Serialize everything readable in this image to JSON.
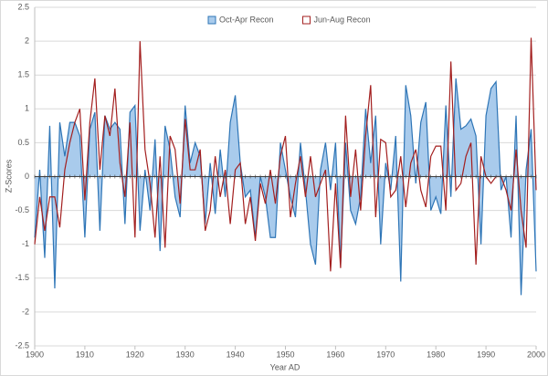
{
  "chart_data": {
    "type": "area-line",
    "xlabel": "Year AD",
    "ylabel": "Z-Scores",
    "x": [
      1900,
      1901,
      1902,
      1903,
      1904,
      1905,
      1906,
      1907,
      1908,
      1909,
      1910,
      1911,
      1912,
      1913,
      1914,
      1915,
      1916,
      1917,
      1918,
      1919,
      1920,
      1921,
      1922,
      1923,
      1924,
      1925,
      1926,
      1927,
      1928,
      1929,
      1930,
      1931,
      1932,
      1933,
      1934,
      1935,
      1936,
      1937,
      1938,
      1939,
      1940,
      1941,
      1942,
      1943,
      1944,
      1945,
      1946,
      1947,
      1948,
      1949,
      1950,
      1951,
      1952,
      1953,
      1954,
      1955,
      1956,
      1957,
      1958,
      1959,
      1960,
      1961,
      1962,
      1963,
      1964,
      1965,
      1966,
      1967,
      1968,
      1969,
      1970,
      1971,
      1972,
      1973,
      1974,
      1975,
      1976,
      1977,
      1978,
      1979,
      1980,
      1981,
      1982,
      1983,
      1984,
      1985,
      1986,
      1987,
      1988,
      1989,
      1990,
      1991,
      1992,
      1993,
      1994,
      1995,
      1996,
      1997,
      1998,
      1999,
      2000
    ],
    "series": [
      {
        "name": "Oct-Apr Recon",
        "kind": "area",
        "color": "#2e75b6",
        "fill": "#a9cbec",
        "values": [
          -0.9,
          0.1,
          -1.2,
          0.75,
          -1.65,
          0.8,
          0.3,
          0.8,
          0.8,
          0.6,
          -0.9,
          0.7,
          0.95,
          -0.8,
          0.9,
          0.7,
          0.8,
          0.7,
          -0.7,
          0.95,
          1.05,
          -0.8,
          0.1,
          -0.5,
          0.55,
          -1.1,
          0.75,
          0.4,
          -0.3,
          -0.6,
          1.05,
          0.2,
          0.5,
          0.3,
          -0.7,
          0.2,
          -0.55,
          0.4,
          -0.3,
          0.8,
          1.2,
          0.2,
          -0.3,
          -0.2,
          -0.9,
          0.0,
          -0.3,
          -0.9,
          -0.9,
          0.5,
          0.1,
          -0.3,
          -0.6,
          0.5,
          -0.2,
          -1.0,
          -1.3,
          0.1,
          0.5,
          -0.2,
          0.5,
          -1.3,
          0.5,
          -0.5,
          -0.7,
          -0.3,
          1.0,
          0.2,
          0.9,
          -1.0,
          0.2,
          -0.2,
          0.6,
          -1.55,
          1.35,
          0.9,
          -0.1,
          0.8,
          1.1,
          -0.5,
          -0.3,
          -0.55,
          1.05,
          -0.3,
          1.45,
          0.7,
          0.75,
          0.85,
          0.6,
          -1.0,
          0.9,
          1.3,
          1.4,
          -0.2,
          0.0,
          -0.9,
          0.9,
          -1.75,
          0.1,
          0.7,
          -1.4
        ]
      },
      {
        "name": "Jun-Aug Recon",
        "kind": "line",
        "color": "#a31f1f",
        "values": [
          -1.0,
          -0.3,
          -0.8,
          -0.3,
          -0.3,
          -0.75,
          0.1,
          0.5,
          0.8,
          1.0,
          -0.35,
          0.8,
          1.45,
          0.1,
          0.9,
          0.6,
          1.3,
          0.2,
          -0.3,
          0.8,
          -0.9,
          2.0,
          0.4,
          -0.1,
          -0.9,
          0.3,
          -1.05,
          0.6,
          0.4,
          -0.4,
          0.85,
          0.1,
          0.1,
          0.4,
          -0.8,
          -0.5,
          0.3,
          -0.3,
          0.1,
          -0.7,
          0.1,
          0.2,
          -0.7,
          -0.3,
          -0.95,
          -0.1,
          -0.4,
          0.1,
          -0.4,
          0.3,
          0.6,
          -0.6,
          -0.1,
          0.3,
          -0.3,
          0.3,
          -0.3,
          -0.1,
          0.1,
          -1.4,
          -0.1,
          -1.35,
          0.9,
          -0.3,
          0.4,
          -0.5,
          0.6,
          1.35,
          -0.6,
          0.55,
          0.5,
          -0.3,
          -0.2,
          0.3,
          -0.45,
          0.2,
          0.4,
          -0.2,
          -0.45,
          0.3,
          0.45,
          0.45,
          -0.5,
          1.7,
          -0.2,
          -0.1,
          0.3,
          0.5,
          -1.3,
          0.3,
          0.0,
          -0.1,
          0.0,
          0.0,
          -0.2,
          -0.5,
          0.4,
          -0.5,
          -1.05,
          2.05,
          -0.2
        ]
      }
    ],
    "xlim": [
      1900,
      2000
    ],
    "xticks": [
      1900,
      1910,
      1920,
      1930,
      1940,
      1950,
      1960,
      1970,
      1980,
      1990,
      2000
    ],
    "ylim": [
      -2.5,
      2.5
    ],
    "yticks": [
      -2.5,
      -2,
      -1.5,
      -1,
      -0.5,
      0,
      0.5,
      1,
      1.5,
      2,
      2.5
    ],
    "grid": true,
    "legend": "top"
  }
}
